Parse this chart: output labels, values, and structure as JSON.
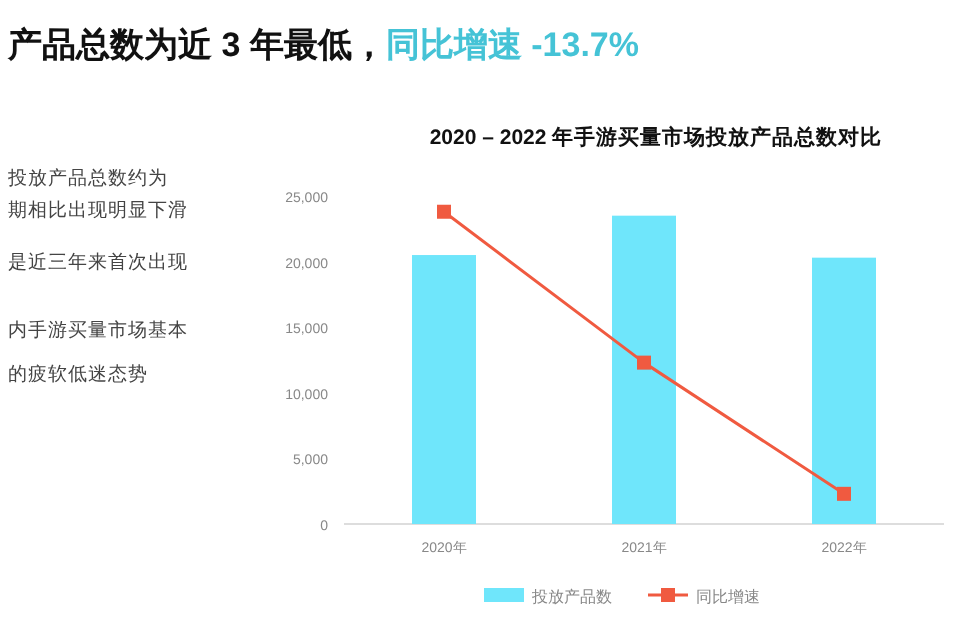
{
  "chart_data": {
    "type": "bar",
    "title": "2020 – 2022 年手游买量市场投放产品总数对比",
    "annotations": [
      "产品总数为近 3 年最低，",
      "同比增速 -13.7%",
      "投放产品总数约为",
      "期相比出现明显下滑",
      "是近三年来首次出现",
      "内手游买量市场基本",
      "的疲软低迷态势"
    ],
    "categories": [
      "2020年",
      "2021年",
      "2022年"
    ],
    "series": [
      {
        "name": "投放产品数",
        "color": "#6fe6fb",
        "values": [
          20500,
          23500,
          20300
        ]
      },
      {
        "name": "同比增速",
        "type": "line",
        "color": "#f05a40",
        "marker": "square",
        "values": [
          23800,
          12300,
          2300
        ]
      }
    ],
    "ylim": [
      0,
      25000
    ],
    "yticks": [
      0,
      {
        "value": 5000,
        "label": "5,000"
      },
      {
        "value": 10000,
        "label": "10,000"
      },
      {
        "value": 15000,
        "label": "15,000"
      },
      {
        "value": 20000,
        "label": "20,000"
      },
      {
        "value": 25000,
        "label": "25,000"
      }
    ],
    "grid": false,
    "legend": "bottom"
  }
}
